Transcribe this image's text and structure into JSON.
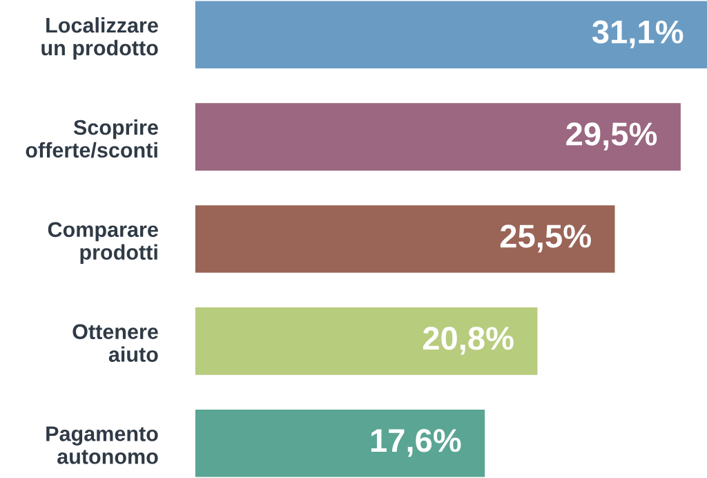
{
  "chart_data": {
    "type": "bar",
    "orientation": "horizontal",
    "categories": [
      "Localizzare\nun prodotto",
      "Scoprire\nofferte/sconti",
      "Comparare\nprodotti",
      "Ottenere\naiuto",
      "Pagamento\nautonomo"
    ],
    "values": [
      31.1,
      29.5,
      25.5,
      20.8,
      17.6
    ],
    "colors": [
      "#6a9bc3",
      "#9b6781",
      "#9a6457",
      "#b8cc7e",
      "#5aa594"
    ],
    "value_labels": [
      "31,1%",
      "29,5%",
      "25,5%",
      "20,8%",
      "17,6%"
    ],
    "grid": false,
    "legend": false
  }
}
